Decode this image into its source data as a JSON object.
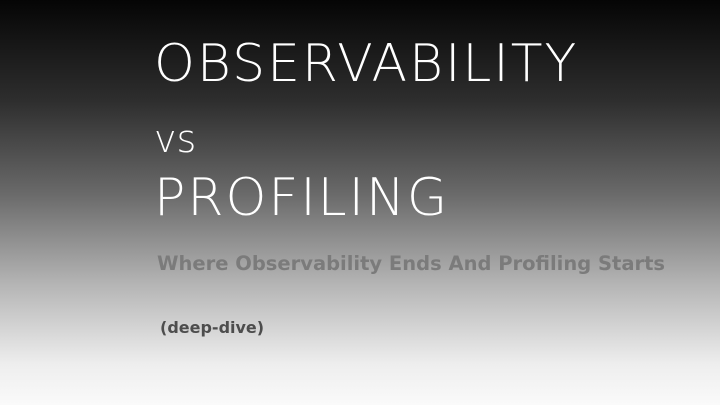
{
  "slide": {
    "title_line_1": "OBSERVABILITY",
    "title_line_2": "vs",
    "title_line_3": "PROFILING",
    "subtitle": "Where Observability Ends And Profiling Starts",
    "tag": "(deep-dive)"
  },
  "colors": {
    "title": "#ffffff",
    "subtitle": "#7b7b7b",
    "tag": "#4d4d4d",
    "background_top": "#050505",
    "background_bottom": "#fafafa"
  }
}
